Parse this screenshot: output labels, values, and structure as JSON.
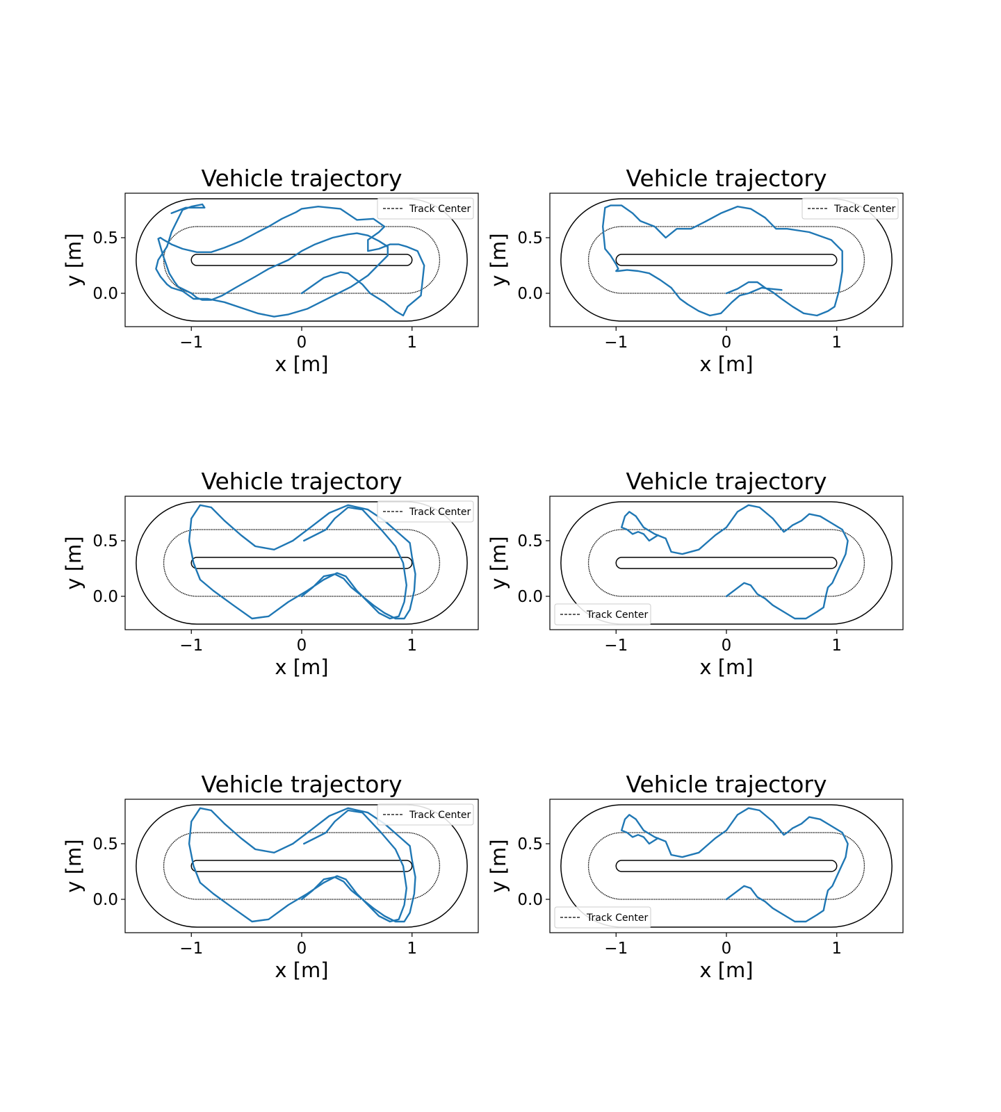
{
  "chart_data": [
    {
      "type": "line",
      "title": "Vehicle trajectory",
      "xlabel": "x [m]",
      "ylabel": "y [m]",
      "xlim": [
        -1.6,
        1.6
      ],
      "ylim": [
        -0.3,
        0.9
      ],
      "xticks": [
        -1,
        0,
        1
      ],
      "xtick_labels": [
        "−1",
        "0",
        "1"
      ],
      "yticks": [
        0.0,
        0.5
      ],
      "ytick_labels": [
        "0.0",
        "0.5"
      ],
      "grid": false,
      "legend": {
        "placement": "top-right",
        "entries": [
          "Track Center"
        ]
      },
      "track": {
        "center_y": 0.3,
        "straight_half_length": 0.95,
        "outer_radius": 0.55,
        "center_radius": 0.3,
        "inner_radius": 0.05
      },
      "series": [
        {
          "name": "",
          "color": "#1f77b4",
          "x": [
            0.0,
            0.2,
            0.35,
            0.42,
            0.55,
            0.62,
            0.75,
            0.85,
            0.92,
            0.96,
            1.08,
            1.11,
            1.05,
            0.95,
            0.88,
            0.8,
            0.7,
            0.6,
            0.6,
            0.7,
            0.75,
            0.65,
            0.5,
            0.35,
            0.15,
            0.0,
            -0.05,
            -0.18,
            -0.3,
            -0.4,
            -0.55,
            -0.7,
            -0.82,
            -0.95,
            -1.08,
            -1.18,
            -1.25,
            -1.28,
            -1.3,
            -1.26,
            -1.2,
            -1.15,
            -1.12,
            -1.0,
            -0.95,
            -0.9,
            -0.82,
            -0.72,
            -0.6,
            -0.42,
            -0.3,
            -0.12,
            0.0,
            0.12,
            0.28,
            0.42,
            0.5,
            0.6,
            0.7,
            0.78,
            0.78,
            0.7,
            0.6,
            0.45,
            0.25,
            0.05,
            -0.12,
            -0.25,
            -0.4,
            -0.52,
            -0.7,
            -0.85,
            -0.98,
            -1.08,
            -1.18,
            -1.22,
            -1.28,
            -1.32,
            -1.3,
            -1.22,
            -1.18,
            -1.12,
            -1.08,
            -1.0,
            -0.9,
            -0.88,
            -1.05,
            -1.18
          ],
          "y": [
            0.0,
            0.14,
            0.19,
            0.18,
            0.08,
            0.0,
            -0.08,
            -0.16,
            -0.2,
            -0.12,
            -0.02,
            0.25,
            0.38,
            0.42,
            0.44,
            0.44,
            0.4,
            0.38,
            0.48,
            0.55,
            0.6,
            0.67,
            0.66,
            0.76,
            0.78,
            0.76,
            0.73,
            0.67,
            0.6,
            0.55,
            0.47,
            0.41,
            0.37,
            0.37,
            0.4,
            0.44,
            0.48,
            0.5,
            0.49,
            0.35,
            0.18,
            0.1,
            0.06,
            0.0,
            -0.04,
            -0.06,
            -0.06,
            -0.02,
            0.05,
            0.15,
            0.22,
            0.3,
            0.38,
            0.44,
            0.5,
            0.53,
            0.54,
            0.52,
            0.47,
            0.42,
            0.34,
            0.26,
            0.16,
            0.06,
            -0.04,
            -0.14,
            -0.19,
            -0.21,
            -0.18,
            -0.14,
            -0.08,
            -0.05,
            -0.05,
            0.02,
            0.05,
            0.08,
            0.15,
            0.22,
            0.3,
            0.42,
            0.55,
            0.67,
            0.75,
            0.78,
            0.8,
            0.77,
            0.77,
            0.72
          ]
        }
      ]
    },
    {
      "type": "line",
      "title": "Vehicle trajectory",
      "xlabel": "x [m]",
      "ylabel": "y [m]",
      "xlim": [
        -1.6,
        1.6
      ],
      "ylim": [
        -0.3,
        0.9
      ],
      "xticks": [
        -1,
        0,
        1
      ],
      "xtick_labels": [
        "−1",
        "0",
        "1"
      ],
      "yticks": [
        0.0,
        0.5
      ],
      "ytick_labels": [
        "0.0",
        "0.5"
      ],
      "grid": false,
      "legend": {
        "placement": "top-right",
        "entries": [
          "Track Center"
        ]
      },
      "track": {
        "center_y": 0.3,
        "straight_half_length": 0.95,
        "outer_radius": 0.55,
        "center_radius": 0.3,
        "inner_radius": 0.05
      },
      "series": [
        {
          "name": "",
          "color": "#1f77b4",
          "x": [
            0.0,
            0.1,
            0.2,
            0.28,
            0.35,
            0.42,
            0.5,
            0.6,
            0.7,
            0.82,
            0.92,
            0.98,
            1.02,
            1.05,
            1.05,
            0.95,
            0.75,
            0.55,
            0.45,
            0.35,
            0.22,
            0.1,
            -0.05,
            -0.2,
            -0.32,
            -0.45,
            -0.55,
            -0.65,
            -0.78,
            -0.85,
            -0.95,
            -1.05,
            -1.1,
            -1.12,
            -1.1,
            -1.05,
            -1.0,
            -0.98,
            -1.0,
            -0.98,
            -0.9,
            -0.8,
            -0.7,
            -0.6,
            -0.5,
            -0.42,
            -0.35,
            -0.25,
            -0.15,
            -0.05,
            0.05,
            0.12,
            0.2,
            0.32,
            0.4,
            0.5
          ],
          "y": [
            0.0,
            0.04,
            0.1,
            0.1,
            0.05,
            0.01,
            -0.05,
            -0.12,
            -0.18,
            -0.2,
            -0.16,
            -0.12,
            0.02,
            0.2,
            0.38,
            0.48,
            0.55,
            0.58,
            0.58,
            0.68,
            0.76,
            0.78,
            0.72,
            0.64,
            0.58,
            0.58,
            0.5,
            0.6,
            0.65,
            0.72,
            0.79,
            0.79,
            0.77,
            0.6,
            0.4,
            0.34,
            0.26,
            0.22,
            0.2,
            0.2,
            0.21,
            0.2,
            0.18,
            0.12,
            0.05,
            -0.05,
            -0.1,
            -0.16,
            -0.2,
            -0.18,
            -0.08,
            -0.02,
            0.0,
            0.05,
            0.04,
            0.03
          ]
        }
      ]
    },
    {
      "type": "line",
      "title": "Vehicle trajectory",
      "xlabel": "x [m]",
      "ylabel": "y [m]",
      "xlim": [
        -1.6,
        1.6
      ],
      "ylim": [
        -0.3,
        0.9
      ],
      "xticks": [
        -1,
        0,
        1
      ],
      "xtick_labels": [
        "−1",
        "0",
        "1"
      ],
      "yticks": [
        0.0,
        0.5
      ],
      "ytick_labels": [
        "0.0",
        "0.5"
      ],
      "grid": false,
      "legend": {
        "placement": "top-right",
        "entries": [
          "Track Center"
        ]
      },
      "track": {
        "center_y": 0.3,
        "straight_half_length": 0.95,
        "outer_radius": 0.55,
        "center_radius": 0.3,
        "inner_radius": 0.05
      },
      "series": [
        {
          "name": "",
          "color": "#1f77b4",
          "x": [
            0.0,
            0.1,
            0.2,
            0.3,
            0.38,
            0.45,
            0.55,
            0.65,
            0.75,
            0.85,
            0.93,
            0.98,
            1.02,
            1.03,
            1.0,
            0.98,
            0.9,
            0.75,
            0.6,
            0.42,
            0.25,
            0.08,
            -0.08,
            -0.25,
            -0.42,
            -0.55,
            -0.7,
            -0.82,
            -0.92,
            -1.0,
            -1.02,
            -0.98,
            -0.92,
            -0.8,
            -0.62,
            -0.45,
            -0.3,
            -0.12,
            0.05,
            0.2,
            0.32,
            0.4,
            0.5,
            0.6,
            0.7,
            0.8,
            0.88,
            0.93,
            0.95,
            0.92,
            0.85,
            0.72,
            0.55,
            0.42,
            0.3,
            0.22,
            0.12,
            0.02
          ],
          "y": [
            0.0,
            0.08,
            0.18,
            0.2,
            0.16,
            0.08,
            0.0,
            -0.08,
            -0.15,
            -0.2,
            -0.2,
            -0.12,
            0.05,
            0.2,
            0.35,
            0.48,
            0.55,
            0.68,
            0.78,
            0.82,
            0.75,
            0.62,
            0.5,
            0.42,
            0.45,
            0.55,
            0.68,
            0.8,
            0.82,
            0.7,
            0.5,
            0.3,
            0.15,
            0.05,
            -0.08,
            -0.2,
            -0.18,
            -0.05,
            0.05,
            0.15,
            0.21,
            0.18,
            0.05,
            -0.05,
            -0.15,
            -0.2,
            -0.18,
            -0.05,
            0.1,
            0.3,
            0.45,
            0.6,
            0.78,
            0.8,
            0.7,
            0.6,
            0.55,
            0.5
          ]
        }
      ]
    },
    {
      "type": "line",
      "title": "Vehicle trajectory",
      "xlabel": "x [m]",
      "ylabel": "y [m]",
      "xlim": [
        -1.6,
        1.6
      ],
      "ylim": [
        -0.3,
        0.9
      ],
      "xticks": [
        -1,
        0,
        1
      ],
      "xtick_labels": [
        "−1",
        "0",
        "1"
      ],
      "yticks": [
        0.0,
        0.5
      ],
      "ytick_labels": [
        "0.0",
        "0.5"
      ],
      "grid": false,
      "legend": {
        "placement": "bottom-left",
        "entries": [
          "Track Center"
        ]
      },
      "track": {
        "center_y": 0.3,
        "straight_half_length": 0.95,
        "outer_radius": 0.55,
        "center_radius": 0.3,
        "inner_radius": 0.05
      },
      "series": [
        {
          "name": "",
          "color": "#1f77b4",
          "x": [
            0.0,
            0.08,
            0.16,
            0.22,
            0.28,
            0.35,
            0.42,
            0.52,
            0.62,
            0.72,
            0.82,
            0.88,
            0.9,
            0.92,
            0.96,
            1.02,
            1.08,
            1.1,
            1.05,
            0.95,
            0.85,
            0.75,
            0.68,
            0.6,
            0.55,
            0.52,
            0.42,
            0.3,
            0.2,
            0.1,
            0.0,
            -0.1,
            -0.25,
            -0.4,
            -0.5,
            -0.55,
            -0.65,
            -0.75,
            -0.82,
            -0.88,
            -0.92,
            -0.95,
            -0.9,
            -0.85,
            -0.8,
            -0.75,
            -0.7,
            -0.62
          ],
          "y": [
            0.0,
            0.06,
            0.12,
            0.1,
            0.02,
            -0.02,
            -0.08,
            -0.14,
            -0.2,
            -0.2,
            -0.14,
            -0.1,
            0.0,
            0.08,
            0.12,
            0.25,
            0.38,
            0.5,
            0.6,
            0.66,
            0.72,
            0.74,
            0.68,
            0.64,
            0.6,
            0.58,
            0.7,
            0.8,
            0.82,
            0.76,
            0.62,
            0.55,
            0.42,
            0.38,
            0.4,
            0.52,
            0.56,
            0.62,
            0.72,
            0.76,
            0.72,
            0.62,
            0.6,
            0.56,
            0.58,
            0.56,
            0.5,
            0.55
          ]
        }
      ]
    },
    {
      "type": "line",
      "title": "Vehicle trajectory",
      "xlabel": "x [m]",
      "ylabel": "y [m]",
      "xlim": [
        -1.6,
        1.6
      ],
      "ylim": [
        -0.3,
        0.9
      ],
      "xticks": [
        -1,
        0,
        1
      ],
      "xtick_labels": [
        "−1",
        "0",
        "1"
      ],
      "yticks": [
        0.0,
        0.5
      ],
      "ytick_labels": [
        "0.0",
        "0.5"
      ],
      "grid": false,
      "legend": {
        "placement": "top-right",
        "entries": [
          "Track Center"
        ]
      },
      "track": {
        "center_y": 0.3,
        "straight_half_length": 0.95,
        "outer_radius": 0.55,
        "center_radius": 0.3,
        "inner_radius": 0.05
      },
      "series": [
        {
          "name": "",
          "color": "#1f77b4",
          "x": [
            0.0,
            0.1,
            0.2,
            0.3,
            0.38,
            0.45,
            0.55,
            0.65,
            0.75,
            0.85,
            0.93,
            0.98,
            1.02,
            1.03,
            1.0,
            0.98,
            0.9,
            0.75,
            0.6,
            0.42,
            0.25,
            0.08,
            -0.08,
            -0.25,
            -0.42,
            -0.55,
            -0.7,
            -0.82,
            -0.92,
            -1.0,
            -1.02,
            -0.98,
            -0.92,
            -0.8,
            -0.62,
            -0.45,
            -0.3,
            -0.12,
            0.05,
            0.2,
            0.32,
            0.4,
            0.5,
            0.6,
            0.7,
            0.8,
            0.88,
            0.93,
            0.95,
            0.92,
            0.85,
            0.72,
            0.55,
            0.42,
            0.3,
            0.22,
            0.12,
            0.02
          ],
          "y": [
            0.0,
            0.08,
            0.18,
            0.2,
            0.16,
            0.08,
            0.0,
            -0.08,
            -0.15,
            -0.2,
            -0.2,
            -0.12,
            0.05,
            0.2,
            0.35,
            0.48,
            0.55,
            0.68,
            0.78,
            0.82,
            0.75,
            0.62,
            0.5,
            0.42,
            0.45,
            0.55,
            0.68,
            0.8,
            0.82,
            0.7,
            0.5,
            0.3,
            0.15,
            0.05,
            -0.08,
            -0.2,
            -0.18,
            -0.05,
            0.05,
            0.15,
            0.21,
            0.18,
            0.05,
            -0.05,
            -0.15,
            -0.2,
            -0.18,
            -0.05,
            0.1,
            0.3,
            0.45,
            0.6,
            0.78,
            0.8,
            0.7,
            0.6,
            0.55,
            0.5
          ]
        }
      ]
    },
    {
      "type": "line",
      "title": "Vehicle trajectory",
      "xlabel": "x [m]",
      "ylabel": "y [m]",
      "xlim": [
        -1.6,
        1.6
      ],
      "ylim": [
        -0.3,
        0.9
      ],
      "xticks": [
        -1,
        0,
        1
      ],
      "xtick_labels": [
        "−1",
        "0",
        "1"
      ],
      "yticks": [
        0.0,
        0.5
      ],
      "ytick_labels": [
        "0.0",
        "0.5"
      ],
      "grid": false,
      "legend": {
        "placement": "bottom-left",
        "entries": [
          "Track Center"
        ]
      },
      "track": {
        "center_y": 0.3,
        "straight_half_length": 0.95,
        "outer_radius": 0.55,
        "center_radius": 0.3,
        "inner_radius": 0.05
      },
      "series": [
        {
          "name": "",
          "color": "#1f77b4",
          "x": [
            0.0,
            0.08,
            0.16,
            0.22,
            0.28,
            0.35,
            0.42,
            0.52,
            0.62,
            0.72,
            0.82,
            0.88,
            0.9,
            0.92,
            0.96,
            1.02,
            1.08,
            1.1,
            1.05,
            0.95,
            0.85,
            0.75,
            0.68,
            0.6,
            0.55,
            0.52,
            0.42,
            0.3,
            0.2,
            0.1,
            0.0,
            -0.1,
            -0.25,
            -0.4,
            -0.5,
            -0.55,
            -0.65,
            -0.75,
            -0.82,
            -0.88,
            -0.92,
            -0.95,
            -0.9,
            -0.85,
            -0.8,
            -0.75,
            -0.7,
            -0.62
          ],
          "y": [
            0.0,
            0.06,
            0.12,
            0.1,
            0.02,
            -0.02,
            -0.08,
            -0.14,
            -0.2,
            -0.2,
            -0.14,
            -0.1,
            0.0,
            0.08,
            0.12,
            0.25,
            0.38,
            0.5,
            0.6,
            0.66,
            0.72,
            0.74,
            0.68,
            0.64,
            0.6,
            0.58,
            0.7,
            0.8,
            0.82,
            0.76,
            0.62,
            0.55,
            0.42,
            0.38,
            0.4,
            0.52,
            0.56,
            0.62,
            0.72,
            0.76,
            0.72,
            0.62,
            0.6,
            0.56,
            0.58,
            0.56,
            0.5,
            0.55
          ]
        }
      ]
    }
  ]
}
